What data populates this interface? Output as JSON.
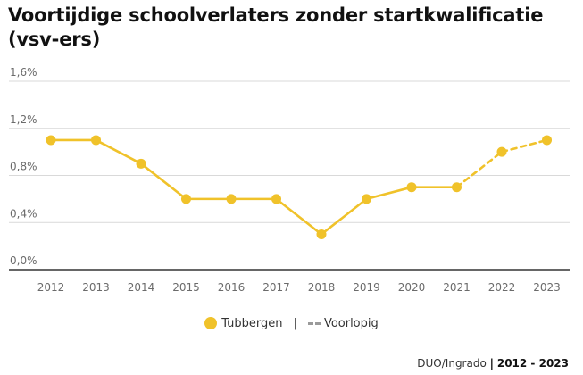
{
  "title": "Voortijdige schoolverlaters zonder startkwalificatie (vsv-ers)",
  "legend": {
    "series_label": "Tubbergen",
    "separator": "|",
    "provisional_label": "Voorlopig"
  },
  "source": {
    "text": "DUO/Ingrado",
    "separator": "|",
    "period": "2012 - 2023"
  },
  "colors": {
    "series": "#f0c22a",
    "grid": "#d9d9d9",
    "axis": "#333333"
  },
  "chart_data": {
    "type": "line",
    "categories": [
      "2012",
      "2013",
      "2014",
      "2015",
      "2016",
      "2017",
      "2018",
      "2019",
      "2020",
      "2021",
      "2022",
      "2023"
    ],
    "series": [
      {
        "name": "Tubbergen",
        "values": [
          1.1,
          1.1,
          0.9,
          0.6,
          0.6,
          0.6,
          0.3,
          0.6,
          0.7,
          0.7,
          1.0,
          1.1
        ],
        "provisional_from_index": 10
      }
    ],
    "y_ticks": [
      {
        "value": 0.0,
        "label": "0,0%"
      },
      {
        "value": 0.4,
        "label": "0,4%"
      },
      {
        "value": 0.8,
        "label": "0,8%"
      },
      {
        "value": 1.2,
        "label": "1,2%"
      },
      {
        "value": 1.6,
        "label": "1,6%"
      }
    ],
    "ylim": [
      0,
      1.6
    ],
    "grid": true,
    "legend_position": "bottom-center"
  }
}
